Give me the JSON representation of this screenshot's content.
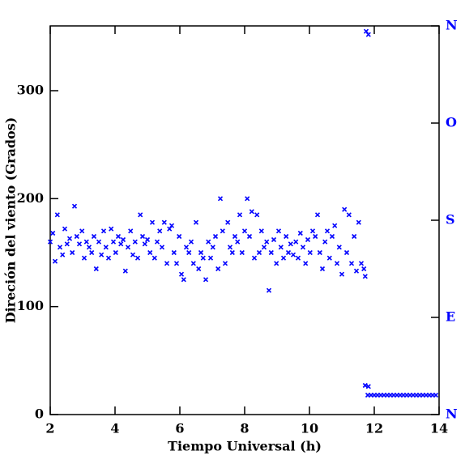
{
  "chart_data": {
    "type": "scatter",
    "xlabel": "Tiempo Universal (h)",
    "ylabel": "Direción del viento (Grados)",
    "xlim": [
      2,
      14
    ],
    "xticks": [
      2,
      4,
      6,
      8,
      10,
      12,
      14
    ],
    "ylim": [
      0,
      360
    ],
    "yticks": [
      0,
      100,
      200,
      300
    ],
    "y2lim": [
      0,
      360
    ],
    "y2ticks": [
      {
        "value": 0,
        "label": "N"
      },
      {
        "value": 90,
        "label": "E"
      },
      {
        "value": 180,
        "label": "S"
      },
      {
        "value": 270,
        "label": "O"
      },
      {
        "value": 360,
        "label": "N"
      }
    ],
    "y2_color": "#0000ff",
    "series": [
      {
        "color": "#0000ff",
        "x": [
          2.0,
          2.08,
          2.15,
          2.22,
          2.3,
          2.38,
          2.45,
          2.52,
          2.6,
          2.68,
          2.75,
          2.82,
          2.9,
          2.98,
          3.05,
          3.12,
          3.2,
          3.28,
          3.35,
          3.42,
          3.5,
          3.58,
          3.65,
          3.72,
          3.8,
          3.88,
          3.95,
          4.02,
          4.1,
          4.18,
          4.25,
          4.32,
          4.4,
          4.48,
          4.55,
          4.62,
          4.7,
          4.78,
          4.85,
          4.92,
          5.0,
          5.08,
          5.15,
          5.22,
          5.3,
          5.38,
          5.45,
          5.52,
          5.6,
          5.68,
          5.75,
          5.82,
          5.9,
          5.98,
          6.05,
          6.12,
          6.2,
          6.28,
          6.35,
          6.42,
          6.5,
          6.58,
          6.65,
          6.72,
          6.8,
          6.88,
          6.95,
          7.02,
          7.1,
          7.18,
          7.25,
          7.32,
          7.4,
          7.48,
          7.55,
          7.62,
          7.7,
          7.78,
          7.85,
          7.92,
          8.0,
          8.08,
          8.15,
          8.22,
          8.3,
          8.38,
          8.45,
          8.52,
          8.6,
          8.68,
          8.75,
          8.82,
          8.9,
          8.98,
          9.05,
          9.12,
          9.2,
          9.28,
          9.35,
          9.42,
          9.5,
          9.58,
          9.65,
          9.72,
          9.8,
          9.88,
          9.95,
          10.02,
          10.1,
          10.18,
          10.25,
          10.32,
          10.4,
          10.48,
          10.55,
          10.62,
          10.7,
          10.78,
          10.85,
          10.92,
          11.0,
          11.08,
          11.15,
          11.22,
          11.3,
          11.38,
          11.45,
          11.52,
          11.6,
          11.68,
          11.72,
          11.75,
          11.82,
          11.72,
          11.82,
          11.8,
          11.9,
          12.0,
          12.1,
          12.2,
          12.3,
          12.4,
          12.5,
          12.6,
          12.7,
          12.8,
          12.9,
          13.0,
          13.1,
          13.2,
          13.3,
          13.4,
          13.5,
          13.6,
          13.7,
          13.8,
          13.9
        ],
        "values": [
          160,
          168,
          142,
          185,
          155,
          148,
          172,
          158,
          163,
          150,
          193,
          165,
          158,
          170,
          145,
          160,
          155,
          150,
          165,
          135,
          160,
          148,
          170,
          155,
          145,
          172,
          160,
          150,
          165,
          158,
          162,
          133,
          155,
          170,
          148,
          160,
          145,
          185,
          165,
          158,
          162,
          150,
          178,
          145,
          160,
          170,
          155,
          178,
          140,
          172,
          175,
          150,
          140,
          165,
          130,
          125,
          155,
          150,
          160,
          140,
          178,
          135,
          150,
          145,
          125,
          160,
          145,
          155,
          165,
          135,
          200,
          170,
          140,
          178,
          155,
          150,
          165,
          160,
          185,
          150,
          170,
          200,
          165,
          188,
          145,
          185,
          150,
          170,
          155,
          160,
          115,
          150,
          162,
          140,
          170,
          155,
          145,
          165,
          150,
          158,
          148,
          160,
          145,
          168,
          155,
          140,
          162,
          150,
          170,
          165,
          185,
          150,
          135,
          160,
          170,
          145,
          165,
          175,
          140,
          155,
          130,
          190,
          150,
          185,
          140,
          165,
          133,
          178,
          140,
          135,
          128,
          355,
          352,
          27,
          26,
          18,
          18,
          18,
          18,
          18,
          18,
          18,
          18,
          18,
          18,
          18,
          18,
          18,
          18,
          18,
          18,
          18,
          18,
          18,
          18,
          18,
          18
        ]
      }
    ]
  }
}
